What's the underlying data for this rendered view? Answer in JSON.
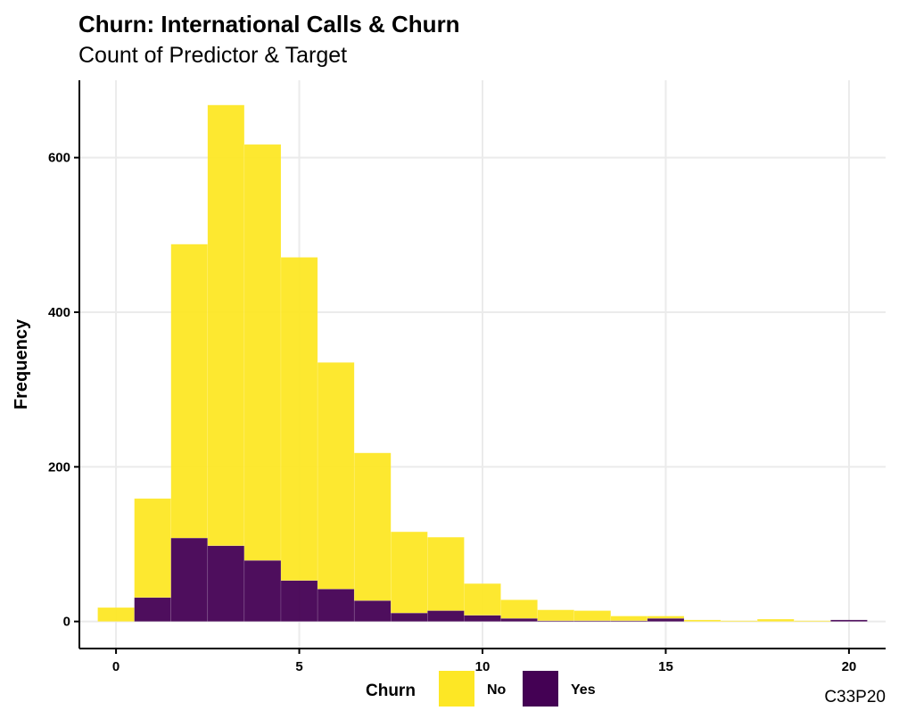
{
  "chart_data": {
    "type": "bar",
    "subtype": "stacked-histogram",
    "title": "Churn: International Calls & Churn",
    "subtitle": "Count of Predictor & Target",
    "xlabel": "",
    "ylabel": "Frequency",
    "caption": "C33P20",
    "xlim": [
      -1,
      21
    ],
    "ylim": [
      -35,
      700
    ],
    "x_ticks": [
      0,
      5,
      10,
      15,
      20
    ],
    "y_ticks": [
      0,
      200,
      400,
      600
    ],
    "bin_width": 1,
    "x": [
      0,
      1,
      2,
      3,
      4,
      5,
      6,
      7,
      8,
      9,
      10,
      11,
      12,
      13,
      14,
      15,
      16,
      17,
      18,
      19,
      20
    ],
    "series": [
      {
        "name": "No",
        "color": "#FDE725",
        "values": [
          18,
          128,
          380,
          570,
          538,
          418,
          293,
          191,
          105,
          95,
          41,
          24,
          14,
          13,
          6,
          3,
          2,
          1,
          3,
          1,
          0
        ]
      },
      {
        "name": "Yes",
        "color": "#440154",
        "values": [
          0,
          31,
          108,
          98,
          79,
          53,
          42,
          27,
          11,
          14,
          8,
          4,
          1,
          1,
          1,
          4,
          0,
          0,
          0,
          0,
          2
        ]
      }
    ],
    "grid": true,
    "legend": {
      "title": "Churn",
      "position": "bottom",
      "entries": [
        "No",
        "Yes"
      ]
    }
  }
}
